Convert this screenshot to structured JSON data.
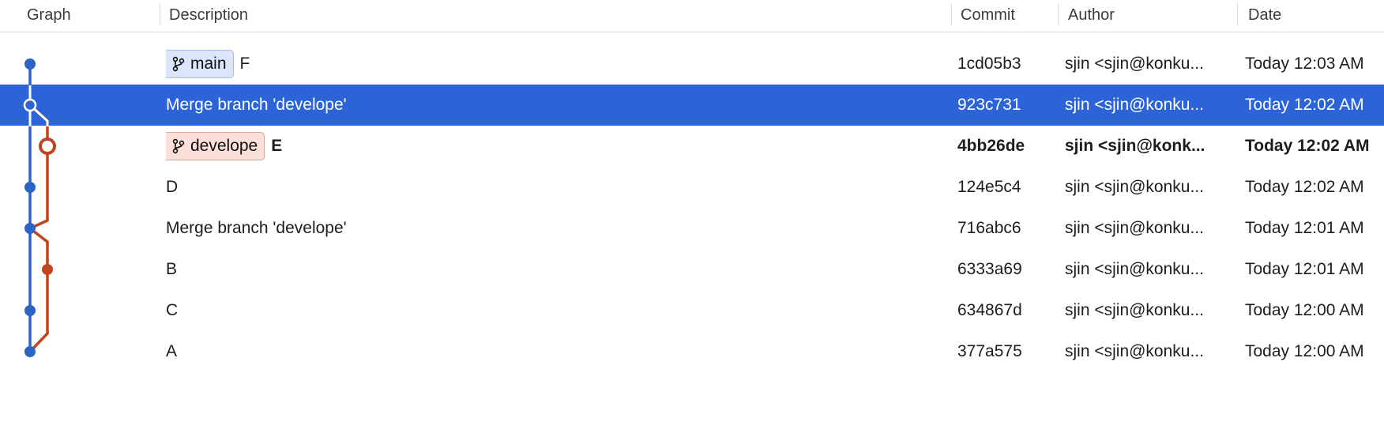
{
  "header": {
    "graph": "Graph",
    "description": "Description",
    "commit": "Commit",
    "author": "Author",
    "date": "Date"
  },
  "commits": [
    {
      "branch": "main",
      "branch_kind": "main",
      "message": "F",
      "hash": "1cd05b3",
      "author": "sjin <sjin@konku...",
      "date": "Today 12:03 AM"
    },
    {
      "branch": "",
      "message": "Merge branch 'develope'",
      "hash": "923c731",
      "author": "sjin <sjin@konku...",
      "date": "Today 12:02 AM",
      "selected": true
    },
    {
      "branch": "develope",
      "branch_kind": "develope",
      "message": "E",
      "hash": "4bb26de",
      "author": "sjin <sjin@konk...",
      "date": "Today 12:02 AM",
      "bold": true
    },
    {
      "branch": "",
      "message": "D",
      "hash": "124e5c4",
      "author": "sjin <sjin@konku...",
      "date": "Today 12:02 AM"
    },
    {
      "branch": "",
      "message": "Merge branch 'develope'",
      "hash": "716abc6",
      "author": "sjin <sjin@konku...",
      "date": "Today 12:01 AM"
    },
    {
      "branch": "",
      "message": "B",
      "hash": "6333a69",
      "author": "sjin <sjin@konku...",
      "date": "Today 12:01 AM"
    },
    {
      "branch": "",
      "message": "C",
      "hash": "634867d",
      "author": "sjin <sjin@konku...",
      "date": "Today 12:00 AM"
    },
    {
      "branch": "",
      "message": "A",
      "hash": "377a575",
      "author": "sjin <sjin@konku...",
      "date": "Today 12:00 AM"
    }
  ],
  "colors": {
    "main_lane": "#2c64c4",
    "develope_lane": "#c0441e",
    "selection": "#2c64d8"
  }
}
